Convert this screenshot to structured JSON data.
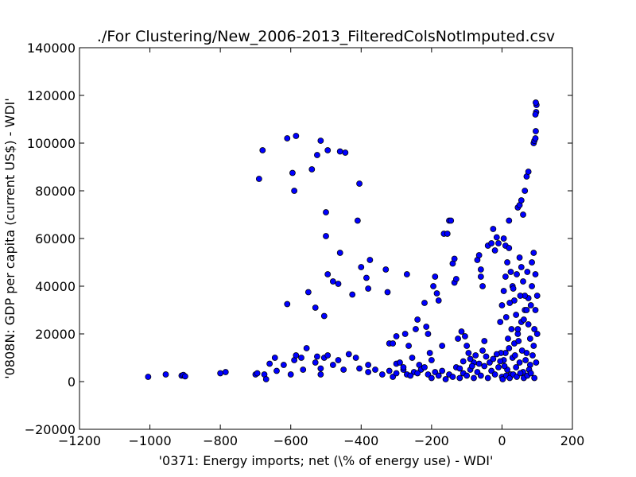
{
  "chart_data": {
    "type": "scatter",
    "title": "./For Clustering/New_2006-2013_FilteredColsNotImputed.csv",
    "xlabel": "'0371: Energy imports; net  (\\% of energy use) - WDI'",
    "ylabel": "'0808N: GDP per capita  (current US$) - WDI'",
    "xlim": [
      -1200,
      200
    ],
    "ylim": [
      -20000,
      140000
    ],
    "xticks": [
      -1200,
      -1000,
      -800,
      -600,
      -400,
      -200,
      0,
      200
    ],
    "yticks": [
      -20000,
      0,
      20000,
      40000,
      60000,
      80000,
      100000,
      120000,
      140000
    ],
    "xtick_labels": [
      "−1200",
      "−1000",
      "−800",
      "−600",
      "−400",
      "−200",
      "0",
      "200"
    ],
    "ytick_labels": [
      "−20000",
      "0",
      "20000",
      "40000",
      "60000",
      "80000",
      "100000",
      "120000",
      "140000"
    ],
    "grid": false,
    "marker_color": "#0000ff",
    "marker_edge": "#000000",
    "points": [
      [
        -1005,
        2000
      ],
      [
        -955,
        3000
      ],
      [
        -910,
        2500
      ],
      [
        -905,
        2800
      ],
      [
        -900,
        2200
      ],
      [
        -800,
        3500
      ],
      [
        -785,
        4000
      ],
      [
        -700,
        3000
      ],
      [
        -695,
        3500
      ],
      [
        -675,
        3000
      ],
      [
        -670,
        1000
      ],
      [
        -660,
        7500
      ],
      [
        -645,
        10000
      ],
      [
        -640,
        4500
      ],
      [
        -620,
        7000
      ],
      [
        -600,
        3000
      ],
      [
        -590,
        9000
      ],
      [
        -585,
        11000
      ],
      [
        -570,
        10000
      ],
      [
        -565,
        5000
      ],
      [
        -555,
        14000
      ],
      [
        -530,
        8000
      ],
      [
        -525,
        10500
      ],
      [
        -515,
        5500
      ],
      [
        -515,
        3000
      ],
      [
        -505,
        10000
      ],
      [
        -495,
        11000
      ],
      [
        -480,
        7000
      ],
      [
        -465,
        9000
      ],
      [
        -450,
        5000
      ],
      [
        -435,
        11500
      ],
      [
        -415,
        10000
      ],
      [
        -405,
        5500
      ],
      [
        -380,
        7000
      ],
      [
        -380,
        4000
      ],
      [
        -690,
        85000
      ],
      [
        -680,
        97000
      ],
      [
        -610,
        102000
      ],
      [
        -595,
        87500
      ],
      [
        -590,
        80000
      ],
      [
        -585,
        103000
      ],
      [
        -540,
        89000
      ],
      [
        -525,
        95000
      ],
      [
        -515,
        101000
      ],
      [
        -495,
        97000
      ],
      [
        -460,
        96500
      ],
      [
        -445,
        96000
      ],
      [
        -500,
        71000
      ],
      [
        -500,
        61000
      ],
      [
        -405,
        83000
      ],
      [
        -410,
        67500
      ],
      [
        -460,
        54000
      ],
      [
        -495,
        45000
      ],
      [
        -480,
        42000
      ],
      [
        -465,
        41000
      ],
      [
        -425,
        36500
      ],
      [
        -385,
        43500
      ],
      [
        -380,
        39000
      ],
      [
        -375,
        51000
      ],
      [
        -400,
        48000
      ],
      [
        -610,
        32500
      ],
      [
        -530,
        31000
      ],
      [
        -505,
        27500
      ],
      [
        -550,
        37500
      ],
      [
        -330,
        47000
      ],
      [
        -325,
        37500
      ],
      [
        -320,
        16000
      ],
      [
        -310,
        16000
      ],
      [
        -300,
        19000
      ],
      [
        -300,
        7500
      ],
      [
        -290,
        8000
      ],
      [
        -280,
        5000
      ],
      [
        -275,
        20000
      ],
      [
        -270,
        45000
      ],
      [
        -265,
        15000
      ],
      [
        -255,
        10000
      ],
      [
        -250,
        4000
      ],
      [
        -245,
        22000
      ],
      [
        -240,
        26000
      ],
      [
        -235,
        7000
      ],
      [
        -230,
        5000
      ],
      [
        -220,
        33000
      ],
      [
        -215,
        23000
      ],
      [
        -210,
        20000
      ],
      [
        -205,
        12000
      ],
      [
        -200,
        9000
      ],
      [
        -195,
        40000
      ],
      [
        -190,
        44000
      ],
      [
        -185,
        37000
      ],
      [
        -180,
        34000
      ],
      [
        -170,
        15000
      ],
      [
        -165,
        62000
      ],
      [
        -155,
        62000
      ],
      [
        -150,
        67500
      ],
      [
        -145,
        67500
      ],
      [
        -140,
        49500
      ],
      [
        -135,
        51500
      ],
      [
        -135,
        41500
      ],
      [
        -130,
        43000
      ],
      [
        -125,
        18000
      ],
      [
        -115,
        21000
      ],
      [
        -105,
        19000
      ],
      [
        -100,
        15000
      ],
      [
        -95,
        12000
      ],
      [
        -80,
        8000
      ],
      [
        -70,
        51000
      ],
      [
        -65,
        53000
      ],
      [
        -60,
        44000
      ],
      [
        -60,
        47000
      ],
      [
        -55,
        40000
      ],
      [
        -50,
        17000
      ],
      [
        -40,
        57000
      ],
      [
        -30,
        58000
      ],
      [
        -25,
        64000
      ],
      [
        -20,
        55000
      ],
      [
        -15,
        60500
      ],
      [
        -10,
        58000
      ],
      [
        5,
        60000
      ],
      [
        10,
        57000
      ],
      [
        20,
        67500
      ],
      [
        45,
        73000
      ],
      [
        50,
        74000
      ],
      [
        55,
        76000
      ],
      [
        60,
        70000
      ],
      [
        65,
        80000
      ],
      [
        70,
        86000
      ],
      [
        75,
        88000
      ],
      [
        90,
        100000
      ],
      [
        92,
        101000
      ],
      [
        95,
        102000
      ],
      [
        96,
        105000
      ],
      [
        97,
        113000
      ],
      [
        98,
        116000
      ],
      [
        96,
        117000
      ],
      [
        95,
        112000
      ],
      [
        -360,
        5000
      ],
      [
        -340,
        3000
      ],
      [
        -320,
        4500
      ],
      [
        -310,
        2000
      ],
      [
        -300,
        3500
      ],
      [
        -280,
        6000
      ],
      [
        -270,
        3000
      ],
      [
        -260,
        2500
      ],
      [
        -240,
        3500
      ],
      [
        -220,
        6000
      ],
      [
        -210,
        3000
      ],
      [
        -200,
        1500
      ],
      [
        -190,
        4000
      ],
      [
        -180,
        2500
      ],
      [
        -170,
        4500
      ],
      [
        -160,
        1000
      ],
      [
        -150,
        3000
      ],
      [
        -140,
        2000
      ],
      [
        -130,
        6000
      ],
      [
        -120,
        1500
      ],
      [
        -110,
        3500
      ],
      [
        -100,
        2500
      ],
      [
        -90,
        5000
      ],
      [
        -80,
        1500
      ],
      [
        -70,
        4000
      ],
      [
        -60,
        2500
      ],
      [
        -50,
        6500
      ],
      [
        -40,
        1500
      ],
      [
        -30,
        4500
      ],
      [
        -20,
        3000
      ],
      [
        -10,
        6000
      ],
      [
        0,
        2000
      ],
      [
        5,
        9000
      ],
      [
        10,
        12000
      ],
      [
        15,
        5000
      ],
      [
        20,
        14000
      ],
      [
        25,
        3000
      ],
      [
        30,
        10000
      ],
      [
        35,
        16000
      ],
      [
        40,
        6000
      ],
      [
        45,
        20000
      ],
      [
        50,
        8000
      ],
      [
        55,
        25000
      ],
      [
        60,
        4000
      ],
      [
        65,
        30000
      ],
      [
        70,
        12000
      ],
      [
        75,
        35000
      ],
      [
        80,
        7000
      ],
      [
        85,
        40000
      ],
      [
        90,
        15000
      ],
      [
        95,
        45000
      ],
      [
        100,
        20000
      ],
      [
        -5,
        25000
      ],
      [
        0,
        32000
      ],
      [
        5,
        38000
      ],
      [
        10,
        44000
      ],
      [
        15,
        50000
      ],
      [
        20,
        56000
      ],
      [
        25,
        46000
      ],
      [
        30,
        40000
      ],
      [
        35,
        34000
      ],
      [
        40,
        28000
      ],
      [
        45,
        22000
      ],
      [
        50,
        52000
      ],
      [
        55,
        48000
      ],
      [
        60,
        42000
      ],
      [
        65,
        36000
      ],
      [
        70,
        30000
      ],
      [
        75,
        24000
      ],
      [
        80,
        18000
      ],
      [
        85,
        50000
      ],
      [
        90,
        54000
      ],
      [
        95,
        30000
      ],
      [
        100,
        36000
      ],
      [
        12,
        27000
      ],
      [
        22,
        33000
      ],
      [
        32,
        39000
      ],
      [
        42,
        45000
      ],
      [
        52,
        36000
      ],
      [
        62,
        26000
      ],
      [
        72,
        46000
      ],
      [
        82,
        32000
      ],
      [
        92,
        22000
      ],
      [
        -3,
        12000
      ],
      [
        7,
        6500
      ],
      [
        17,
        18000
      ],
      [
        27,
        22000
      ],
      [
        37,
        11000
      ],
      [
        47,
        17000
      ],
      [
        57,
        13000
      ],
      [
        67,
        9000
      ],
      [
        77,
        5000
      ],
      [
        87,
        11000
      ],
      [
        97,
        8000
      ],
      [
        2,
        1000
      ],
      [
        12,
        2500
      ],
      [
        22,
        1500
      ],
      [
        32,
        3000
      ],
      [
        42,
        2000
      ],
      [
        52,
        3500
      ],
      [
        62,
        1500
      ],
      [
        72,
        2500
      ],
      [
        82,
        3500
      ],
      [
        92,
        1500
      ],
      [
        -110,
        8500
      ],
      [
        -90,
        9500
      ],
      [
        -75,
        11000
      ],
      [
        -55,
        13000
      ],
      [
        -45,
        10500
      ],
      [
        -35,
        8000
      ],
      [
        -25,
        9500
      ],
      [
        -15,
        11500
      ],
      [
        -5,
        8500
      ],
      [
        -120,
        5500
      ],
      [
        -85,
        6500
      ],
      [
        -65,
        7500
      ]
    ]
  }
}
